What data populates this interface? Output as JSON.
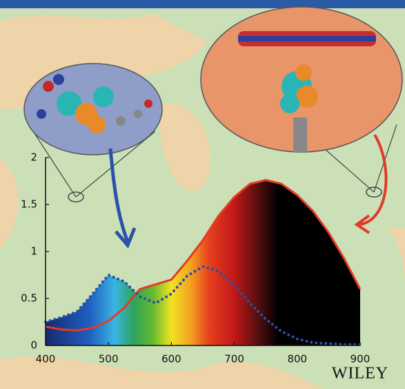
{
  "chart_data": {
    "type": "line",
    "xlim": [
      400,
      900
    ],
    "ylim": [
      0,
      2
    ],
    "xticks": [
      400,
      500,
      600,
      700,
      800,
      900
    ],
    "yticks": [
      0,
      0.5,
      1,
      1.5,
      2
    ],
    "x": [
      400,
      425,
      450,
      475,
      500,
      525,
      550,
      575,
      600,
      625,
      650,
      675,
      700,
      725,
      750,
      775,
      800,
      825,
      850,
      875,
      900
    ],
    "series": [
      {
        "color": "#e43a22",
        "style": "solid",
        "values": [
          0.2,
          0.17,
          0.16,
          0.19,
          0.26,
          0.4,
          0.6,
          0.65,
          0.7,
          0.9,
          1.12,
          1.38,
          1.58,
          1.72,
          1.76,
          1.72,
          1.6,
          1.43,
          1.2,
          0.92,
          0.6
        ]
      },
      {
        "color": "#2c4fa6",
        "style": "dotted",
        "values": [
          0.25,
          0.3,
          0.36,
          0.55,
          0.75,
          0.68,
          0.52,
          0.45,
          0.55,
          0.74,
          0.84,
          0.79,
          0.64,
          0.45,
          0.28,
          0.15,
          0.07,
          0.03,
          0.02,
          0.01,
          0.01
        ]
      }
    ],
    "publisher": "WILEY"
  }
}
